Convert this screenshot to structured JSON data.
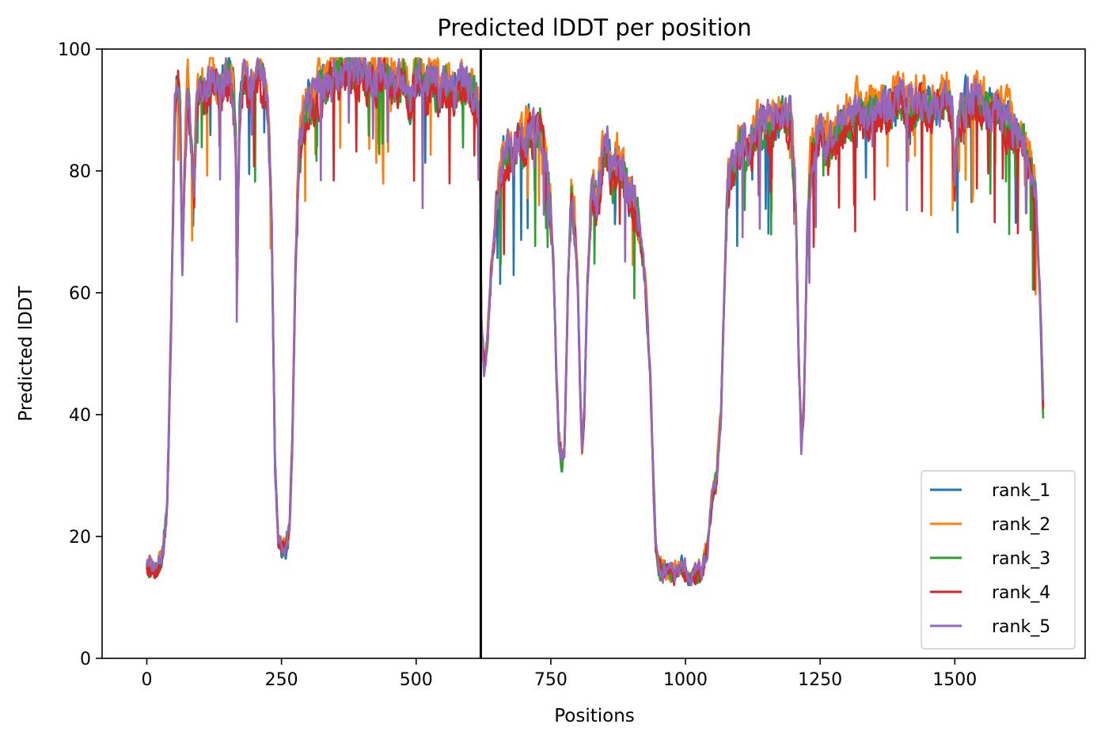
{
  "chart_data": {
    "type": "line",
    "title": "Predicted lDDT per position",
    "xlabel": "Positions",
    "ylabel": "Predicted lDDT",
    "xlim": [
      -83,
      1742
    ],
    "ylim": [
      0,
      100
    ],
    "xticks": [
      0,
      250,
      500,
      750,
      1000,
      1250,
      1500
    ],
    "yticks": [
      0,
      20,
      40,
      60,
      80,
      100
    ],
    "vline_x": 620,
    "grid": false,
    "legend_position": "lower-right",
    "base_profile": [
      [
        0,
        16
      ],
      [
        8,
        15
      ],
      [
        15,
        15
      ],
      [
        20,
        15
      ],
      [
        30,
        17
      ],
      [
        38,
        26
      ],
      [
        45,
        55
      ],
      [
        52,
        90
      ],
      [
        58,
        96
      ],
      [
        62,
        88
      ],
      [
        66,
        64
      ],
      [
        70,
        80
      ],
      [
        76,
        94
      ],
      [
        82,
        84
      ],
      [
        88,
        77
      ],
      [
        92,
        90
      ],
      [
        98,
        94
      ],
      [
        110,
        92
      ],
      [
        120,
        95
      ],
      [
        135,
        93
      ],
      [
        150,
        96
      ],
      [
        160,
        94
      ],
      [
        165,
        85
      ],
      [
        168,
        64
      ],
      [
        172,
        88
      ],
      [
        178,
        94
      ],
      [
        185,
        95
      ],
      [
        195,
        93
      ],
      [
        205,
        96
      ],
      [
        215,
        95
      ],
      [
        225,
        90
      ],
      [
        232,
        70
      ],
      [
        238,
        32
      ],
      [
        244,
        19
      ],
      [
        250,
        18
      ],
      [
        258,
        18
      ],
      [
        265,
        22
      ],
      [
        270,
        35
      ],
      [
        276,
        64
      ],
      [
        282,
        82
      ],
      [
        292,
        88
      ],
      [
        300,
        91
      ],
      [
        320,
        93
      ],
      [
        340,
        95
      ],
      [
        360,
        96
      ],
      [
        380,
        96
      ],
      [
        400,
        96
      ],
      [
        420,
        95
      ],
      [
        440,
        96
      ],
      [
        460,
        94
      ],
      [
        480,
        95
      ],
      [
        490,
        90
      ],
      [
        500,
        96
      ],
      [
        520,
        93
      ],
      [
        530,
        95
      ],
      [
        540,
        93
      ],
      [
        560,
        95
      ],
      [
        570,
        92
      ],
      [
        580,
        95
      ],
      [
        590,
        93
      ],
      [
        600,
        94
      ],
      [
        610,
        92
      ],
      [
        618,
        88
      ],
      [
        621,
        55
      ],
      [
        626,
        48
      ],
      [
        632,
        52
      ],
      [
        640,
        64
      ],
      [
        650,
        75
      ],
      [
        660,
        82
      ],
      [
        670,
        83
      ],
      [
        680,
        82
      ],
      [
        690,
        86
      ],
      [
        700,
        84
      ],
      [
        710,
        88
      ],
      [
        720,
        86
      ],
      [
        730,
        88
      ],
      [
        740,
        82
      ],
      [
        748,
        76
      ],
      [
        755,
        65
      ],
      [
        760,
        48
      ],
      [
        765,
        36
      ],
      [
        770,
        33
      ],
      [
        775,
        34
      ],
      [
        778,
        45
      ],
      [
        782,
        62
      ],
      [
        788,
        76
      ],
      [
        795,
        70
      ],
      [
        800,
        62
      ],
      [
        805,
        42
      ],
      [
        808,
        34
      ],
      [
        812,
        40
      ],
      [
        818,
        62
      ],
      [
        825,
        76
      ],
      [
        835,
        74
      ],
      [
        845,
        82
      ],
      [
        855,
        84
      ],
      [
        865,
        78
      ],
      [
        875,
        82
      ],
      [
        885,
        80
      ],
      [
        895,
        76
      ],
      [
        905,
        75
      ],
      [
        915,
        70
      ],
      [
        925,
        62
      ],
      [
        935,
        45
      ],
      [
        940,
        30
      ],
      [
        945,
        18
      ],
      [
        950,
        15
      ],
      [
        965,
        14
      ],
      [
        980,
        14
      ],
      [
        995,
        15
      ],
      [
        1005,
        13
      ],
      [
        1015,
        14
      ],
      [
        1030,
        14
      ],
      [
        1040,
        18
      ],
      [
        1050,
        26
      ],
      [
        1058,
        30
      ],
      [
        1066,
        40
      ],
      [
        1072,
        60
      ],
      [
        1078,
        78
      ],
      [
        1090,
        82
      ],
      [
        1105,
        85
      ],
      [
        1120,
        84
      ],
      [
        1140,
        88
      ],
      [
        1160,
        87
      ],
      [
        1180,
        90
      ],
      [
        1195,
        88
      ],
      [
        1205,
        75
      ],
      [
        1210,
        50
      ],
      [
        1215,
        35
      ],
      [
        1220,
        42
      ],
      [
        1226,
        70
      ],
      [
        1235,
        84
      ],
      [
        1250,
        86
      ],
      [
        1265,
        84
      ],
      [
        1280,
        86
      ],
      [
        1300,
        88
      ],
      [
        1320,
        90
      ],
      [
        1340,
        89
      ],
      [
        1360,
        91
      ],
      [
        1380,
        90
      ],
      [
        1400,
        92
      ],
      [
        1420,
        90
      ],
      [
        1440,
        92
      ],
      [
        1460,
        90
      ],
      [
        1480,
        92
      ],
      [
        1495,
        90
      ],
      [
        1500,
        78
      ],
      [
        1505,
        88
      ],
      [
        1520,
        91
      ],
      [
        1540,
        92
      ],
      [
        1560,
        90
      ],
      [
        1580,
        91
      ],
      [
        1600,
        88
      ],
      [
        1615,
        86
      ],
      [
        1630,
        84
      ],
      [
        1640,
        82
      ],
      [
        1650,
        75
      ],
      [
        1658,
        60
      ],
      [
        1664,
        42
      ]
    ],
    "series": [
      {
        "name": "rank_1",
        "color": "#1f77b4",
        "offset": 0.0,
        "seed": 11
      },
      {
        "name": "rank_2",
        "color": "#ff7f0e",
        "offset": 1.6,
        "seed": 23
      },
      {
        "name": "rank_3",
        "color": "#2ca02c",
        "offset": -0.6,
        "seed": 37
      },
      {
        "name": "rank_4",
        "color": "#d62728",
        "offset": -1.2,
        "seed": 53
      },
      {
        "name": "rank_5",
        "color": "#9467bd",
        "offset": 0.2,
        "seed": 71
      }
    ]
  }
}
